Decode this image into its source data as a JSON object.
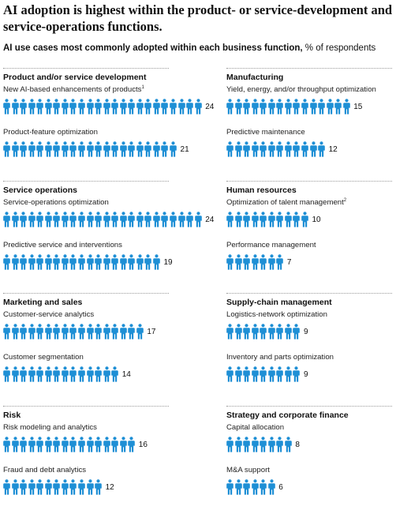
{
  "title": "AI adoption is highest within the product- or service-development and service-operations functions.",
  "subtitle": {
    "bold": "AI use cases most commonly adopted within each business function,",
    "rest": " % of respondents"
  },
  "colors": {
    "icon": "#1e8fd5",
    "divider": "#9a9a9a"
  },
  "icon_name": "person-icon",
  "chart_data": {
    "type": "pictogram",
    "unit": "% of respondents",
    "panels": [
      {
        "name": "Product and/or service development",
        "items": [
          {
            "label": "New AI-based enhancements of products",
            "note": "1",
            "value": 24
          },
          {
            "label": "Product-feature optimization",
            "note": "",
            "value": 21
          }
        ]
      },
      {
        "name": "Manufacturing",
        "items": [
          {
            "label": "Yield, energy, and/or throughput optimization",
            "note": "",
            "value": 15
          },
          {
            "label": "Predictive maintenance",
            "note": "",
            "value": 12
          }
        ]
      },
      {
        "name": "Service operations",
        "items": [
          {
            "label": "Service-operations optimization",
            "note": "",
            "value": 24
          },
          {
            "label": "Predictive service and interventions",
            "note": "",
            "value": 19
          }
        ]
      },
      {
        "name": "Human resources",
        "items": [
          {
            "label": "Optimization of talent management",
            "note": "2",
            "value": 10
          },
          {
            "label": "Performance management",
            "note": "",
            "value": 7
          }
        ]
      },
      {
        "name": "Marketing and sales",
        "items": [
          {
            "label": "Customer-service analytics",
            "note": "",
            "value": 17
          },
          {
            "label": "Customer segmentation",
            "note": "",
            "value": 14
          }
        ]
      },
      {
        "name": "Supply-chain management",
        "items": [
          {
            "label": "Logistics-network optimization",
            "note": "",
            "value": 9
          },
          {
            "label": "Inventory and parts optimization",
            "note": "",
            "value": 9
          }
        ]
      },
      {
        "name": "Risk",
        "items": [
          {
            "label": "Risk modeling and analytics",
            "note": "",
            "value": 16
          },
          {
            "label": "Fraud and debt analytics",
            "note": "",
            "value": 12
          }
        ]
      },
      {
        "name": "Strategy and corporate finance",
        "items": [
          {
            "label": "Capital allocation",
            "note": "",
            "value": 8
          },
          {
            "label": "M&A support",
            "note": "",
            "value": 6
          }
        ]
      }
    ]
  }
}
